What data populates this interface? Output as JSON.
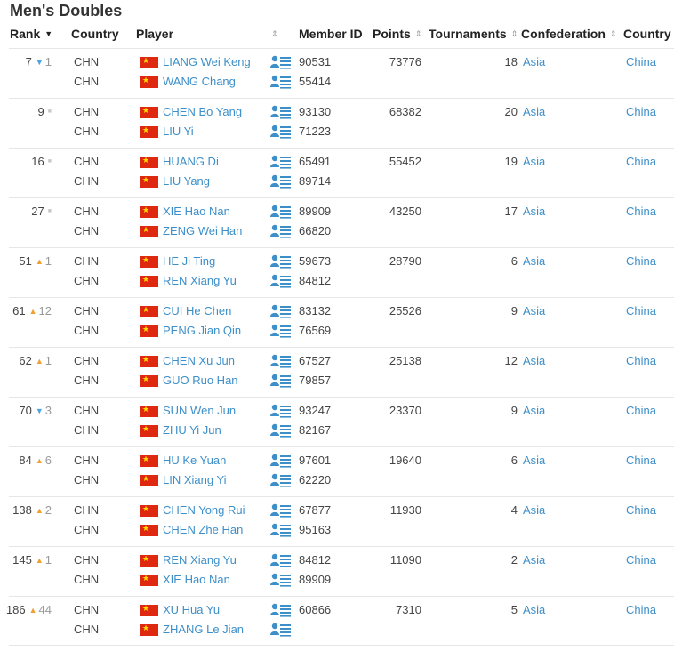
{
  "title": "Men's Doubles",
  "columns": {
    "rank": "Rank",
    "country": "Country",
    "player": "Player",
    "member_id": "Member ID",
    "points": "Points",
    "tournaments": "Tournaments",
    "confederation": "Confederation",
    "country2": "Country"
  },
  "icons": {
    "sort": "sort-icon",
    "sorted_desc": "sort-desc-icon",
    "profile": "player-profile-icon",
    "flag": "china-flag-icon",
    "up": "rank-up-icon",
    "down": "rank-down-icon",
    "same": "rank-unchanged-icon"
  },
  "colors": {
    "link": "#3d8fc9",
    "up": "#f0a030",
    "down": "#4aa3df",
    "flag_red": "#de2910",
    "flag_star": "#ffde00"
  },
  "rows": [
    {
      "rank": "7",
      "trend": "down",
      "change": "1",
      "players": [
        {
          "code": "CHN",
          "name": "LIANG Wei Keng",
          "id": "90531"
        },
        {
          "code": "CHN",
          "name": "WANG Chang",
          "id": "55414"
        }
      ],
      "points": "73776",
      "tournaments": "18",
      "confederation": "Asia",
      "country": "China"
    },
    {
      "rank": "9",
      "trend": "same",
      "change": "",
      "players": [
        {
          "code": "CHN",
          "name": "CHEN Bo Yang",
          "id": "93130"
        },
        {
          "code": "CHN",
          "name": "LIU Yi",
          "id": "71223"
        }
      ],
      "points": "68382",
      "tournaments": "20",
      "confederation": "Asia",
      "country": "China"
    },
    {
      "rank": "16",
      "trend": "same",
      "change": "",
      "players": [
        {
          "code": "CHN",
          "name": "HUANG Di",
          "id": "65491"
        },
        {
          "code": "CHN",
          "name": "LIU Yang",
          "id": "89714"
        }
      ],
      "points": "55452",
      "tournaments": "19",
      "confederation": "Asia",
      "country": "China"
    },
    {
      "rank": "27",
      "trend": "same",
      "change": "",
      "players": [
        {
          "code": "CHN",
          "name": "XIE Hao Nan",
          "id": "89909"
        },
        {
          "code": "CHN",
          "name": "ZENG Wei Han",
          "id": "66820"
        }
      ],
      "points": "43250",
      "tournaments": "17",
      "confederation": "Asia",
      "country": "China"
    },
    {
      "rank": "51",
      "trend": "up",
      "change": "1",
      "players": [
        {
          "code": "CHN",
          "name": "HE Ji Ting",
          "id": "59673"
        },
        {
          "code": "CHN",
          "name": "REN Xiang Yu",
          "id": "84812"
        }
      ],
      "points": "28790",
      "tournaments": "6",
      "confederation": "Asia",
      "country": "China"
    },
    {
      "rank": "61",
      "trend": "up",
      "change": "12",
      "players": [
        {
          "code": "CHN",
          "name": "CUI He Chen",
          "id": "83132"
        },
        {
          "code": "CHN",
          "name": "PENG Jian Qin",
          "id": "76569"
        }
      ],
      "points": "25526",
      "tournaments": "9",
      "confederation": "Asia",
      "country": "China"
    },
    {
      "rank": "62",
      "trend": "up",
      "change": "1",
      "players": [
        {
          "code": "CHN",
          "name": "CHEN Xu Jun",
          "id": "67527"
        },
        {
          "code": "CHN",
          "name": "GUO Ruo Han",
          "id": "79857"
        }
      ],
      "points": "25138",
      "tournaments": "12",
      "confederation": "Asia",
      "country": "China"
    },
    {
      "rank": "70",
      "trend": "down",
      "change": "3",
      "players": [
        {
          "code": "CHN",
          "name": "SUN Wen Jun",
          "id": "93247"
        },
        {
          "code": "CHN",
          "name": "ZHU Yi Jun",
          "id": "82167"
        }
      ],
      "points": "23370",
      "tournaments": "9",
      "confederation": "Asia",
      "country": "China"
    },
    {
      "rank": "84",
      "trend": "up",
      "change": "6",
      "players": [
        {
          "code": "CHN",
          "name": "HU Ke Yuan",
          "id": "97601"
        },
        {
          "code": "CHN",
          "name": "LIN Xiang Yi",
          "id": "62220"
        }
      ],
      "points": "19640",
      "tournaments": "6",
      "confederation": "Asia",
      "country": "China"
    },
    {
      "rank": "138",
      "trend": "up",
      "change": "2",
      "players": [
        {
          "code": "CHN",
          "name": "CHEN Yong Rui",
          "id": "67877"
        },
        {
          "code": "CHN",
          "name": "CHEN Zhe Han",
          "id": "95163"
        }
      ],
      "points": "11930",
      "tournaments": "4",
      "confederation": "Asia",
      "country": "China"
    },
    {
      "rank": "145",
      "trend": "up",
      "change": "1",
      "players": [
        {
          "code": "CHN",
          "name": "REN Xiang Yu",
          "id": "84812"
        },
        {
          "code": "CHN",
          "name": "XIE Hao Nan",
          "id": "89909"
        }
      ],
      "points": "11090",
      "tournaments": "2",
      "confederation": "Asia",
      "country": "China"
    },
    {
      "rank": "186",
      "trend": "up",
      "change": "44",
      "players": [
        {
          "code": "CHN",
          "name": "XU Hua Yu",
          "id": "60866"
        },
        {
          "code": "CHN",
          "name": "ZHANG Le Jian",
          "id": ""
        }
      ],
      "points": "7310",
      "tournaments": "5",
      "confederation": "Asia",
      "country": "China"
    }
  ]
}
